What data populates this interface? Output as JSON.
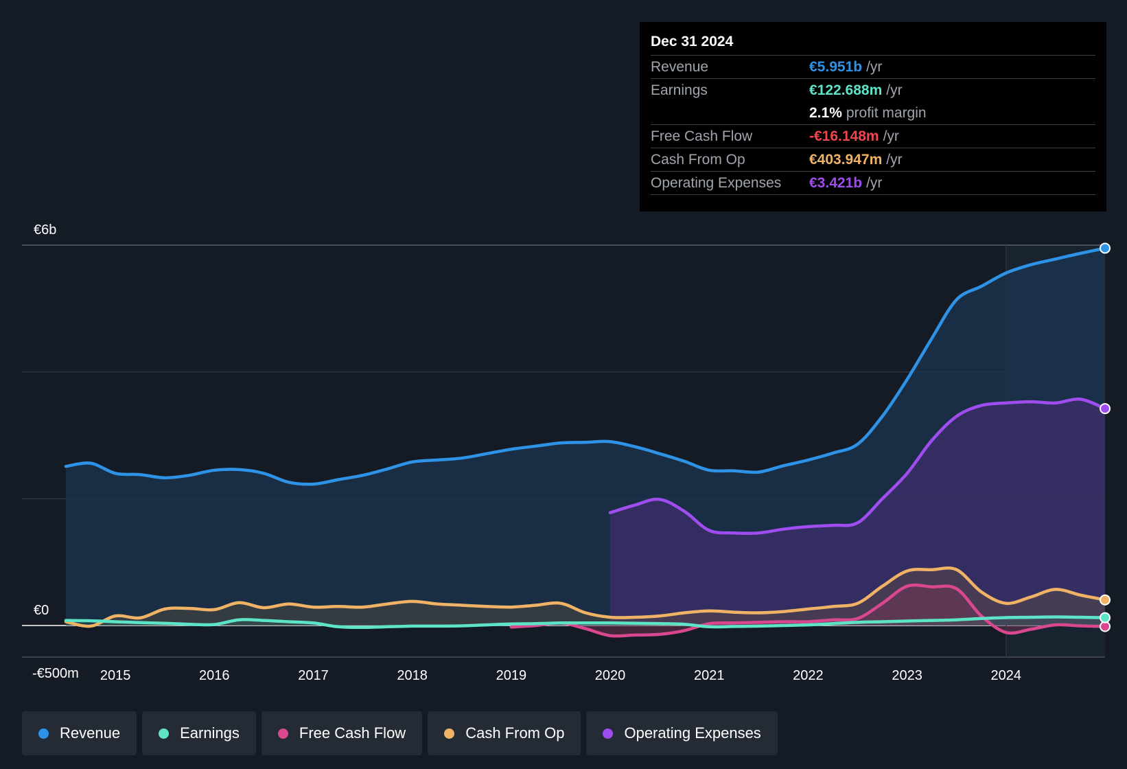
{
  "tooltip": {
    "date": "Dec 31 2024",
    "rows": [
      {
        "label": "Revenue",
        "value": "€5.951b",
        "unit": "/yr",
        "color": "#2e93e6"
      },
      {
        "label": "Earnings",
        "value": "€122.688m",
        "unit": "/yr",
        "color": "#5de4c7"
      },
      {
        "label": "",
        "value": "2.1%",
        "unit": "profit margin",
        "color": "#ffffff"
      },
      {
        "label": "Free Cash Flow",
        "value": "-€16.148m",
        "unit": "/yr",
        "color": "#f0454f"
      },
      {
        "label": "Cash From Op",
        "value": "€403.947m",
        "unit": "/yr",
        "color": "#f0b265"
      },
      {
        "label": "Operating Expenses",
        "value": "€3.421b",
        "unit": "/yr",
        "color": "#a04df0"
      }
    ]
  },
  "legend": [
    {
      "label": "Revenue",
      "color": "#2e93e6"
    },
    {
      "label": "Earnings",
      "color": "#5de4c7"
    },
    {
      "label": "Free Cash Flow",
      "color": "#d9488f"
    },
    {
      "label": "Cash From Op",
      "color": "#f0b265"
    },
    {
      "label": "Operating Expenses",
      "color": "#a04df0"
    }
  ],
  "chart_data": {
    "type": "area",
    "title": "",
    "xlabel": "",
    "ylabel": "",
    "y_tick_labels": [
      {
        "value": 6000,
        "label": "€6b"
      },
      {
        "value": 0,
        "label": "€0"
      },
      {
        "value": -500,
        "label": "-€500m"
      }
    ],
    "ylim": [
      -500,
      6000
    ],
    "xlim": [
      2014.5,
      2025.0
    ],
    "x_ticks": [
      2015,
      2016,
      2017,
      2018,
      2019,
      2020,
      2021,
      2022,
      2023,
      2024
    ],
    "series": [
      {
        "name": "Revenue",
        "color": "#2e93e6",
        "x": [
          2014.5,
          2014.75,
          2015.0,
          2015.25,
          2015.5,
          2015.75,
          2016.0,
          2016.25,
          2016.5,
          2016.75,
          2017.0,
          2017.25,
          2017.5,
          2017.75,
          2018.0,
          2018.25,
          2018.5,
          2018.75,
          2019.0,
          2019.25,
          2019.5,
          2019.75,
          2020.0,
          2020.25,
          2020.5,
          2020.75,
          2021.0,
          2021.25,
          2021.5,
          2021.75,
          2022.0,
          2022.25,
          2022.5,
          2022.75,
          2023.0,
          2023.25,
          2023.5,
          2023.75,
          2024.0,
          2024.25,
          2024.5,
          2024.75,
          2025.0
        ],
        "values": [
          2510,
          2560,
          2400,
          2380,
          2330,
          2370,
          2450,
          2460,
          2400,
          2260,
          2230,
          2300,
          2370,
          2470,
          2580,
          2610,
          2640,
          2710,
          2780,
          2830,
          2880,
          2890,
          2900,
          2820,
          2710,
          2590,
          2450,
          2440,
          2420,
          2520,
          2610,
          2720,
          2860,
          3300,
          3880,
          4530,
          5140,
          5350,
          5560,
          5690,
          5780,
          5870,
          5951
        ]
      },
      {
        "name": "Earnings",
        "color": "#5de4c7",
        "x": [
          2014.5,
          2014.75,
          2015.0,
          2015.25,
          2015.5,
          2015.75,
          2016.0,
          2016.25,
          2016.5,
          2016.75,
          2017.0,
          2017.25,
          2017.5,
          2017.75,
          2018.0,
          2018.25,
          2018.5,
          2018.75,
          2019.0,
          2019.25,
          2019.5,
          2019.75,
          2020.0,
          2020.25,
          2020.5,
          2020.75,
          2021.0,
          2021.25,
          2021.5,
          2021.75,
          2022.0,
          2022.25,
          2022.5,
          2022.75,
          2023.0,
          2023.25,
          2023.5,
          2023.75,
          2024.0,
          2024.25,
          2024.5,
          2024.75,
          2025.0
        ],
        "values": [
          80,
          75,
          60,
          45,
          35,
          20,
          15,
          90,
          80,
          60,
          40,
          -20,
          -30,
          -20,
          -10,
          -10,
          -5,
          10,
          25,
          30,
          40,
          40,
          40,
          35,
          30,
          20,
          -20,
          -15,
          -10,
          0,
          10,
          30,
          50,
          60,
          70,
          80,
          90,
          110,
          125,
          130,
          135,
          130,
          123
        ]
      },
      {
        "name": "Free Cash Flow",
        "color": "#d9488f",
        "x": [
          2019.0,
          2019.25,
          2019.5,
          2019.75,
          2020.0,
          2020.25,
          2020.5,
          2020.75,
          2021.0,
          2021.25,
          2021.5,
          2021.75,
          2022.0,
          2022.25,
          2022.5,
          2022.75,
          2023.0,
          2023.25,
          2023.5,
          2023.75,
          2024.0,
          2024.25,
          2024.5,
          2024.75,
          2025.0
        ],
        "values": [
          -25,
          0,
          40,
          -50,
          -160,
          -150,
          -140,
          -80,
          30,
          40,
          50,
          60,
          60,
          90,
          110,
          350,
          620,
          610,
          580,
          150,
          -110,
          -60,
          10,
          -5,
          -16
        ]
      },
      {
        "name": "Cash From Op",
        "color": "#f0b265",
        "x": [
          2014.5,
          2014.75,
          2015.0,
          2015.25,
          2015.5,
          2015.75,
          2016.0,
          2016.25,
          2016.5,
          2016.75,
          2017.0,
          2017.25,
          2017.5,
          2017.75,
          2018.0,
          2018.25,
          2018.5,
          2018.75,
          2019.0,
          2019.25,
          2019.5,
          2019.75,
          2020.0,
          2020.25,
          2020.5,
          2020.75,
          2021.0,
          2021.25,
          2021.5,
          2021.75,
          2022.0,
          2022.25,
          2022.5,
          2022.75,
          2023.0,
          2023.25,
          2023.5,
          2023.75,
          2024.0,
          2024.25,
          2024.5,
          2024.75,
          2025.0
        ],
        "values": [
          60,
          -10,
          150,
          120,
          260,
          270,
          250,
          360,
          280,
          340,
          290,
          300,
          290,
          340,
          380,
          340,
          320,
          300,
          290,
          320,
          350,
          200,
          130,
          130,
          150,
          200,
          230,
          210,
          200,
          220,
          260,
          300,
          350,
          620,
          860,
          880,
          880,
          530,
          350,
          450,
          570,
          480,
          404
        ]
      },
      {
        "name": "Operating Expenses",
        "color": "#a04df0",
        "x": [
          2020.0,
          2020.25,
          2020.5,
          2020.75,
          2021.0,
          2021.25,
          2021.5,
          2021.75,
          2022.0,
          2022.25,
          2022.5,
          2022.75,
          2023.0,
          2023.25,
          2023.5,
          2023.75,
          2024.0,
          2024.25,
          2024.5,
          2024.75,
          2025.0
        ],
        "values": [
          1780,
          1900,
          1990,
          1800,
          1500,
          1460,
          1460,
          1520,
          1560,
          1580,
          1620,
          2000,
          2400,
          2920,
          3300,
          3470,
          3510,
          3530,
          3510,
          3570,
          3421
        ]
      }
    ]
  }
}
